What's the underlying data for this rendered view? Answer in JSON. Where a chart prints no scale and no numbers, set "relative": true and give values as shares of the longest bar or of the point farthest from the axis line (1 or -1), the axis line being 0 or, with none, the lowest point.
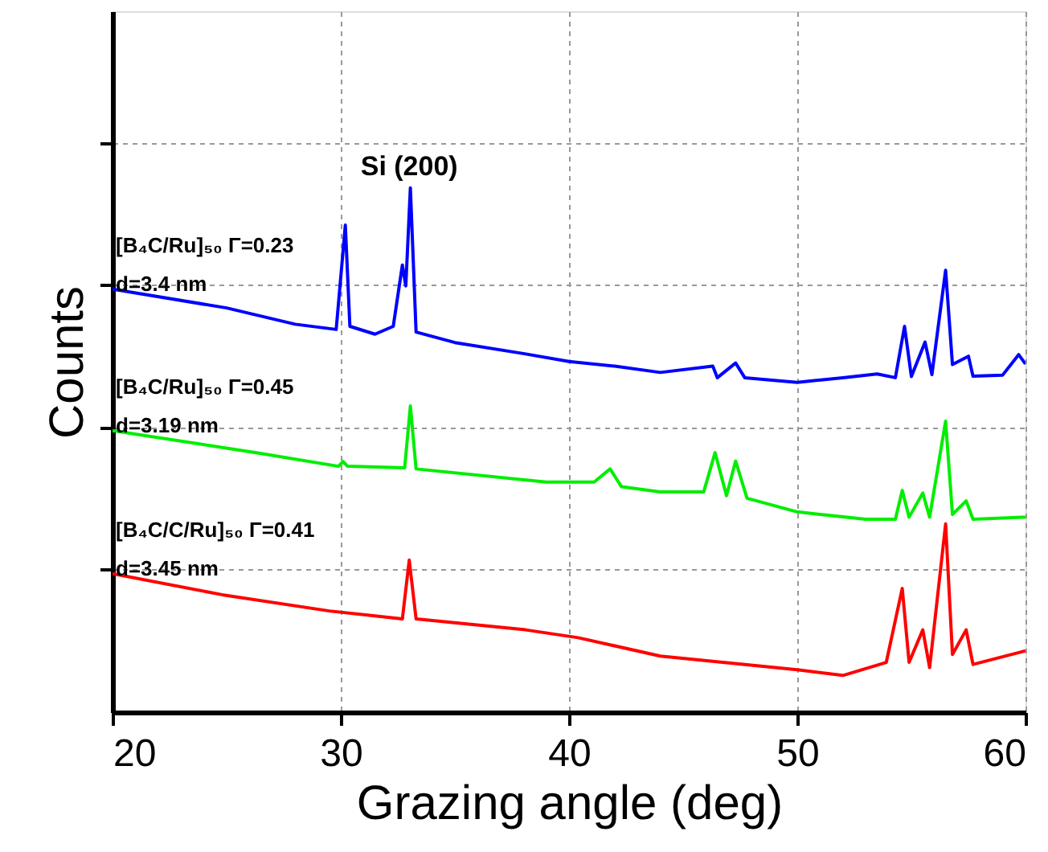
{
  "chart_data": {
    "type": "line",
    "relative": true,
    "xlabel": "Grazing angle (deg)",
    "ylabel": "Counts",
    "xlim": [
      20,
      60
    ],
    "xticks": [
      20,
      30,
      40,
      50,
      60
    ],
    "grid": true,
    "line_style": "solid",
    "marker": "none",
    "series": [
      {
        "name": "[B₄C/Ru]₅₀ Γ=0.23\nd=3.4 nm",
        "color": "#0000ff",
        "x": [
          20,
          25,
          28,
          29.8,
          30.2,
          30.4,
          31.5,
          32.3,
          32.7,
          32.85,
          33.05,
          33.3,
          35,
          38,
          40,
          42,
          44,
          46.3,
          46.5,
          47.3,
          47.7,
          50,
          52,
          53.5,
          54.3,
          54.7,
          55.0,
          55.6,
          55.9,
          56.5,
          56.8,
          57.5,
          57.7,
          59,
          59.7,
          60
        ],
        "values": [
          0.807,
          0.771,
          0.74,
          0.73,
          0.929,
          0.736,
          0.721,
          0.736,
          0.853,
          0.813,
          1.0,
          0.725,
          0.705,
          0.684,
          0.669,
          0.66,
          0.648,
          0.66,
          0.638,
          0.666,
          0.638,
          0.629,
          0.638,
          0.645,
          0.638,
          0.736,
          0.64,
          0.706,
          0.644,
          0.843,
          0.663,
          0.679,
          0.641,
          0.643,
          0.682,
          0.664
        ]
      },
      {
        "name": "[B₄C/Ru]₅₀ Γ=0.45\nd=3.19 nm",
        "color": "#00ee00",
        "x": [
          20,
          26.3,
          29.9,
          30.1,
          30.3,
          32.8,
          33.05,
          33.3,
          39,
          41.1,
          41.8,
          42.3,
          44,
          45.9,
          46.4,
          46.9,
          47.3,
          47.8,
          50,
          53,
          54.3,
          54.6,
          54.9,
          55.5,
          55.8,
          56.5,
          56.8,
          57.4,
          57.7,
          60
        ],
        "values": [
          0.537,
          0.495,
          0.469,
          0.478,
          0.469,
          0.466,
          0.584,
          0.464,
          0.439,
          0.439,
          0.464,
          0.43,
          0.42,
          0.42,
          0.495,
          0.413,
          0.479,
          0.408,
          0.382,
          0.368,
          0.368,
          0.423,
          0.372,
          0.418,
          0.372,
          0.555,
          0.377,
          0.403,
          0.368,
          0.372
        ]
      },
      {
        "name": "[B₄C/C/Ru]₅₀ Γ=0.41\nd=3.45 nm",
        "color": "#ff0000",
        "x": [
          20,
          24.8,
          29.5,
          32.7,
          33.0,
          33.3,
          38.1,
          40.4,
          44,
          50,
          52,
          53.9,
          54.6,
          54.9,
          55.5,
          55.8,
          56.5,
          56.8,
          57.4,
          57.7,
          60
        ],
        "values": [
          0.264,
          0.224,
          0.193,
          0.178,
          0.29,
          0.178,
          0.157,
          0.142,
          0.107,
          0.081,
          0.07,
          0.095,
          0.236,
          0.095,
          0.157,
          0.085,
          0.359,
          0.11,
          0.157,
          0.091,
          0.117
        ]
      }
    ],
    "annotations": [
      {
        "text": "Si (200)",
        "x": 33.0,
        "y": 1.0
      }
    ]
  }
}
